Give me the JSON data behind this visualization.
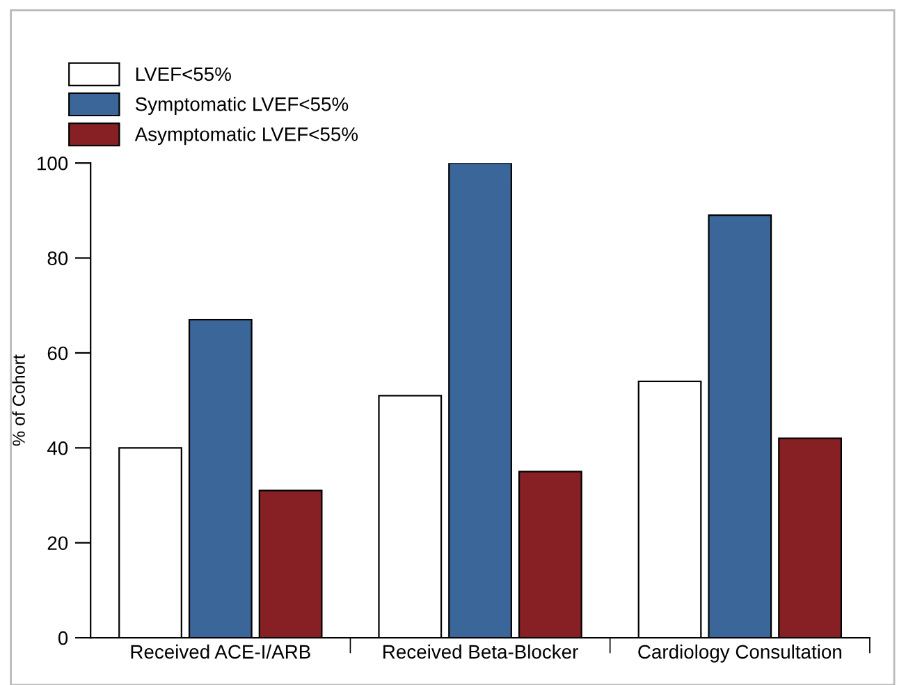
{
  "chart_data": {
    "type": "bar",
    "ylabel": "% of Cohort",
    "categories": [
      "Received ACE-I/ARB",
      "Received Beta-Blocker",
      "Cardiology Consultation"
    ],
    "series": [
      {
        "name": "LVEF<55%",
        "color": "#ffffff",
        "values": [
          40,
          51,
          54
        ]
      },
      {
        "name": "Symptomatic LVEF<55%",
        "color": "#3a6699",
        "values": [
          67,
          100,
          89
        ]
      },
      {
        "name": "Asymptomatic LVEF<55%",
        "color": "#862024",
        "values": [
          31,
          35,
          42
        ]
      }
    ],
    "ylim": [
      0,
      100
    ],
    "yticks": [
      0,
      20,
      40,
      60,
      80,
      100
    ],
    "grid": false,
    "legend": "top left"
  }
}
